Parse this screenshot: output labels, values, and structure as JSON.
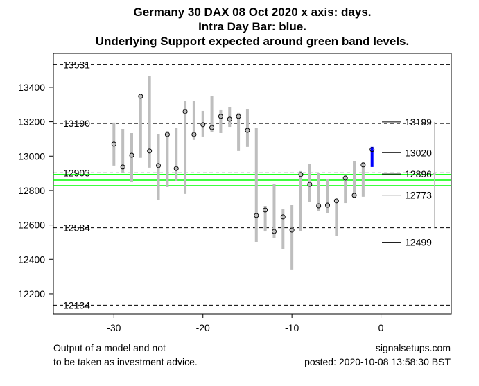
{
  "chart_data": {
    "type": "bar",
    "title": [
      "Germany 30 DAX 08 Oct 2020 x axis: days.",
      "Intra Day Bar: blue.",
      "Underlying Support expected around green band levels."
    ],
    "xlabel": "",
    "ylabel": "",
    "xlim": [
      -36.8,
      7.9
    ],
    "ylim": [
      12083,
      13597
    ],
    "x_ticks": [
      -30,
      -20,
      -10,
      0
    ],
    "y_ticks": [
      12200,
      12400,
      12600,
      12800,
      13000,
      13200,
      13400
    ],
    "bars": [
      {
        "x": -30,
        "high": 13195,
        "low": 12945,
        "close": 13070
      },
      {
        "x": -29,
        "high": 13158,
        "low": 12901,
        "close": 12937
      },
      {
        "x": -28,
        "high": 13134,
        "low": 12848,
        "close": 13005
      },
      {
        "x": -27,
        "high": 13360,
        "low": 12990,
        "close": 13348
      },
      {
        "x": -26,
        "high": 13468,
        "low": 12933,
        "close": 13030
      },
      {
        "x": -25,
        "high": 13130,
        "low": 12744,
        "close": 12945
      },
      {
        "x": -24,
        "high": 13146,
        "low": 12820,
        "close": 13126
      },
      {
        "x": -23,
        "high": 13166,
        "low": 12856,
        "close": 12928
      },
      {
        "x": -22,
        "high": 13319,
        "low": 12780,
        "close": 13259
      },
      {
        "x": -21,
        "high": 13319,
        "low": 13094,
        "close": 13126
      },
      {
        "x": -20,
        "high": 13263,
        "low": 13114,
        "close": 13183
      },
      {
        "x": -19,
        "high": 13348,
        "low": 13142,
        "close": 13166
      },
      {
        "x": -18,
        "high": 13267,
        "low": 13134,
        "close": 13231
      },
      {
        "x": -17,
        "high": 13283,
        "low": 13170,
        "close": 13215
      },
      {
        "x": -16,
        "high": 13251,
        "low": 13030,
        "close": 13231
      },
      {
        "x": -15,
        "high": 13271,
        "low": 13054,
        "close": 13150
      },
      {
        "x": -14,
        "high": 13166,
        "low": 12502,
        "close": 12655
      },
      {
        "x": -13,
        "high": 12711,
        "low": 12562,
        "close": 12687
      },
      {
        "x": -12,
        "high": 12836,
        "low": 12526,
        "close": 12562
      },
      {
        "x": -11,
        "high": 12695,
        "low": 12458,
        "close": 12647
      },
      {
        "x": -10,
        "high": 12715,
        "low": 12341,
        "close": 12570
      },
      {
        "x": -9,
        "high": 12913,
        "low": 12566,
        "close": 12893
      },
      {
        "x": -8,
        "high": 12953,
        "low": 12735,
        "close": 12836
      },
      {
        "x": -7,
        "high": 12901,
        "low": 12683,
        "close": 12711
      },
      {
        "x": -6,
        "high": 12864,
        "low": 12667,
        "close": 12715
      },
      {
        "x": -5,
        "high": 12752,
        "low": 12538,
        "close": 12740
      },
      {
        "x": -4,
        "high": 12893,
        "low": 12727,
        "close": 12872
      },
      {
        "x": -3,
        "high": 12973,
        "low": 12756,
        "close": 12772
      },
      {
        "x": -2,
        "high": 12965,
        "low": 12764,
        "close": 12949
      }
    ],
    "intraday_bar": {
      "x": -1,
      "high": 13054,
      "low": 12937,
      "close": 13038,
      "color": "#0000ff"
    },
    "dashed_levels": [
      {
        "value": 13531,
        "label": "13531"
      },
      {
        "value": 13190,
        "label": "13190"
      },
      {
        "value": 12903,
        "label": "12903"
      },
      {
        "value": 12584,
        "label": "12584"
      },
      {
        "value": 12134,
        "label": "12134"
      }
    ],
    "green_band": [
      12893,
      12860,
      12828
    ],
    "green_color": "#00ff00",
    "right_levels": [
      {
        "value": 13199,
        "label": "13199"
      },
      {
        "value": 13020,
        "label": "13020"
      },
      {
        "value": 12896,
        "label": "12896"
      },
      {
        "value": 12773,
        "label": "12773"
      },
      {
        "value": 12499,
        "label": "12499"
      }
    ],
    "range_line": {
      "x": 6,
      "high": 13199,
      "low": 12584,
      "mid": 12896
    },
    "bar_color": "#bebebe"
  },
  "footer": {
    "left_line1": "Output of a model and not",
    "left_line2": "to be taken as investment advice.",
    "right_line1": "signalsetups.com",
    "right_line2": "posted: 2020-10-08 13:58:30 BST"
  }
}
